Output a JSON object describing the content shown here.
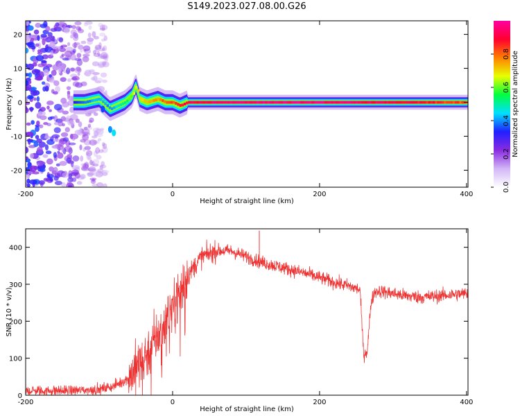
{
  "figure": {
    "title": "S149.2023.027.08.00.G26"
  },
  "chart_data": [
    {
      "type": "heatmap",
      "xlabel": "Height of straight line (km)",
      "ylabel": "Frequency (Hz)",
      "xlim": [
        -200,
        402
      ],
      "ylim": [
        -25,
        24
      ],
      "xticks": [
        -200,
        0,
        200,
        400
      ],
      "yticks": [
        -20,
        -10,
        0,
        10,
        20
      ],
      "colorbar": {
        "label": "Normalized spectral amplitude",
        "range": [
          0,
          1
        ],
        "ticks": [
          "0.0",
          "0.2",
          "0.4",
          "0.6",
          "0.8"
        ],
        "colors": [
          "#ffffff",
          "#d2b6f6",
          "#8a2be2",
          "#2020ff",
          "#00e0ff",
          "#00ff40",
          "#e8ff00",
          "#ff8000",
          "#ff0030",
          "#ff00a0"
        ]
      },
      "ridge": {
        "x": [
          -135,
          -120,
          -100,
          -85,
          -75,
          -65,
          -55,
          -50,
          -45,
          -35,
          -20,
          -10,
          0,
          10,
          20,
          40,
          60,
          100,
          200,
          300,
          400
        ],
        "frequency": [
          0,
          0,
          1,
          -2,
          -1,
          0,
          2,
          5,
          1,
          0,
          1,
          0,
          0,
          -1,
          0,
          0,
          0,
          0,
          0,
          0,
          0
        ],
        "peak_amplitude": [
          0.35,
          0.4,
          0.45,
          0.4,
          0.5,
          0.55,
          0.65,
          0.75,
          0.7,
          0.75,
          0.8,
          0.85,
          0.85,
          0.9,
          0.95,
          0.95,
          1.0,
          1.0,
          1.0,
          0.95,
          0.85
        ]
      },
      "noise_region_x": [
        -200,
        -100
      ]
    },
    {
      "type": "line",
      "xlabel": "Height of straight line (km)",
      "ylabel": "SNR (10 * v/v)",
      "xlim": [
        -200,
        402
      ],
      "ylim": [
        0,
        450
      ],
      "xticks": [
        -200,
        0,
        200,
        400
      ],
      "yticks": [
        0,
        100,
        200,
        300,
        400
      ],
      "color": "#ee3232",
      "series": [
        {
          "x": [
            -200,
            -150,
            -100,
            -80,
            -60,
            -50,
            -40,
            -30,
            -20,
            -10,
            0,
            10,
            20,
            30,
            40,
            60,
            80,
            100,
            120,
            140,
            160,
            180,
            200,
            220,
            240,
            255,
            260,
            265,
            270,
            275,
            280,
            300,
            320,
            340,
            360,
            380,
            402
          ],
          "y": [
            12,
            12,
            15,
            25,
            45,
            75,
            95,
            130,
            160,
            200,
            240,
            280,
            320,
            350,
            375,
            390,
            390,
            375,
            360,
            350,
            340,
            330,
            318,
            305,
            295,
            285,
            110,
            120,
            250,
            280,
            282,
            275,
            268,
            265,
            268,
            272,
            275
          ]
        }
      ],
      "spikes": [
        {
          "x": 118,
          "y": 445
        }
      ]
    }
  ]
}
